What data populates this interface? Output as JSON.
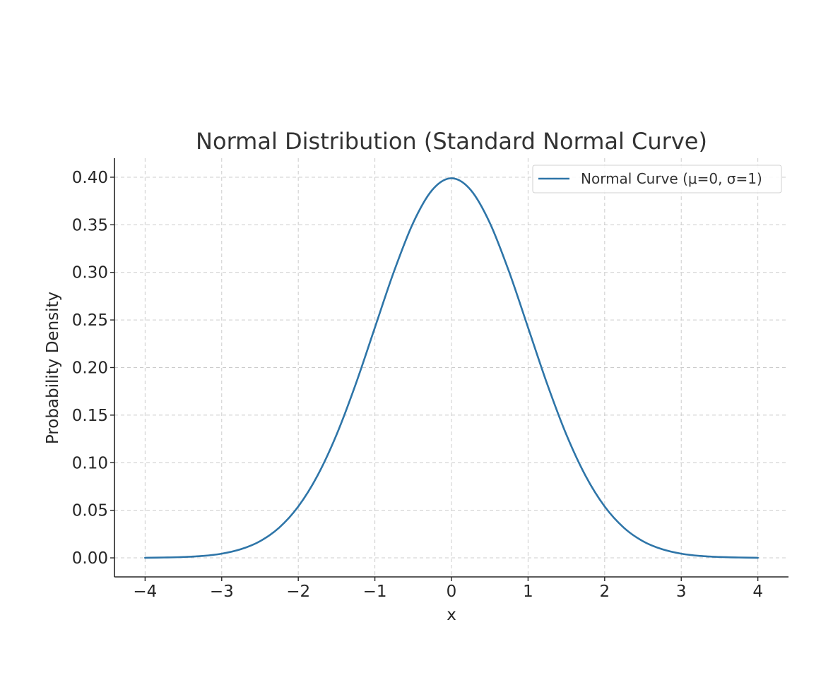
{
  "chart_data": {
    "type": "line",
    "title": "Normal Distribution (Standard Normal Curve)",
    "xlabel": "x",
    "ylabel": "Probability Density",
    "xlim": [
      -4.4,
      4.4
    ],
    "ylim": [
      -0.02,
      0.42
    ],
    "x_ticks": [
      -4,
      -3,
      -2,
      -1,
      0,
      1,
      2,
      3,
      4
    ],
    "x_tick_labels": [
      "−4",
      "−3",
      "−2",
      "−1",
      "0",
      "1",
      "2",
      "3",
      "4"
    ],
    "y_ticks": [
      0.0,
      0.05,
      0.1,
      0.15,
      0.2,
      0.25,
      0.3,
      0.35,
      0.4
    ],
    "y_tick_labels": [
      "0.00",
      "0.05",
      "0.10",
      "0.15",
      "0.20",
      "0.25",
      "0.30",
      "0.35",
      "0.40"
    ],
    "grid": true,
    "legend_position": "top-right",
    "series": [
      {
        "name": "Normal Curve (μ=0, σ=1)",
        "color": "#2e75a8",
        "x": [
          -4.0,
          -3.75,
          -3.5,
          -3.25,
          -3.0,
          -2.75,
          -2.5,
          -2.25,
          -2.0,
          -1.75,
          -1.5,
          -1.25,
          -1.0,
          -0.75,
          -0.5,
          -0.25,
          0.0,
          0.25,
          0.5,
          0.75,
          1.0,
          1.25,
          1.5,
          1.75,
          2.0,
          2.25,
          2.5,
          2.75,
          3.0,
          3.25,
          3.5,
          3.75,
          4.0
        ],
        "y": [
          0.0001,
          0.0004,
          0.0009,
          0.002,
          0.0044,
          0.0091,
          0.0175,
          0.0317,
          0.054,
          0.0863,
          0.1295,
          0.1826,
          0.242,
          0.3011,
          0.3521,
          0.3867,
          0.3989,
          0.3867,
          0.3521,
          0.3011,
          0.242,
          0.1826,
          0.1295,
          0.0863,
          0.054,
          0.0317,
          0.0175,
          0.0091,
          0.0044,
          0.002,
          0.0009,
          0.0004,
          0.0001
        ]
      }
    ]
  }
}
